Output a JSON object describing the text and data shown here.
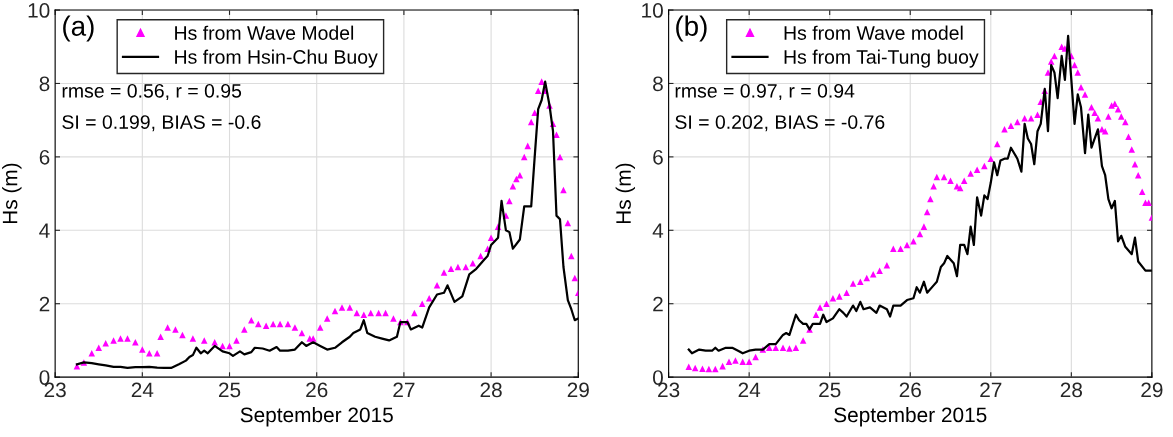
{
  "chart_data": [
    {
      "type": "line",
      "xlabel": "September 2015",
      "ylabel": "Hs (m)",
      "xlim": [
        23,
        29
      ],
      "xticks": [
        23,
        24,
        25,
        26,
        27,
        28,
        29
      ],
      "ylim": [
        0,
        10
      ],
      "yticks": [
        0,
        2,
        4,
        6,
        8,
        10
      ],
      "grid": true,
      "legend": "top left",
      "annotations": [
        "(a)",
        "rmse = 0.56, r = 0.95",
        "SI = 0.199, BIAS = -0.6"
      ],
      "series": [
        {
          "name": "Hs from Wave Model",
          "type": "scatter",
          "marker": "triangle",
          "color": "#ff00ff",
          "x": [
            23.25,
            23.33,
            23.42,
            23.5,
            23.58,
            23.67,
            23.75,
            23.83,
            23.92,
            24.0,
            24.08,
            24.17,
            24.21,
            24.29,
            24.38,
            24.46,
            24.58,
            24.71,
            24.83,
            24.92,
            25.0,
            25.08,
            25.17,
            25.25,
            25.33,
            25.42,
            25.5,
            25.58,
            25.67,
            25.75,
            25.83,
            25.92,
            25.96,
            26.04,
            26.12,
            26.21,
            26.29,
            26.38,
            26.46,
            26.54,
            26.62,
            26.71,
            26.79,
            26.88,
            26.96,
            27.04,
            27.12,
            27.21,
            27.29,
            27.38,
            27.46,
            27.54,
            27.62,
            27.71,
            27.79,
            27.88,
            27.96,
            28.0,
            28.08,
            28.17,
            28.21,
            28.25,
            28.29,
            28.33,
            28.38,
            28.42,
            28.46,
            28.5,
            28.54,
            28.58,
            28.62,
            28.67,
            28.71,
            28.75,
            28.79,
            28.83,
            28.88,
            28.92,
            28.96,
            29.0
          ],
          "values": [
            0.3,
            0.4,
            0.65,
            0.8,
            0.92,
            1.0,
            1.05,
            1.05,
            0.95,
            0.75,
            0.65,
            0.65,
            1.1,
            1.35,
            1.3,
            1.15,
            1.05,
            1.0,
            0.95,
            0.85,
            0.85,
            1.0,
            1.3,
            1.55,
            1.45,
            1.4,
            1.45,
            1.45,
            1.45,
            1.35,
            1.2,
            1.05,
            1.05,
            1.35,
            1.6,
            1.8,
            1.9,
            1.9,
            1.75,
            1.7,
            1.75,
            1.75,
            1.75,
            1.6,
            1.5,
            1.5,
            1.75,
            2.0,
            2.15,
            2.5,
            2.85,
            2.95,
            3.0,
            3.0,
            3.1,
            3.3,
            3.5,
            3.8,
            4.1,
            4.4,
            4.8,
            5.2,
            5.4,
            5.5,
            6.0,
            6.3,
            6.95,
            7.2,
            7.8,
            8.05,
            7.8,
            7.4,
            6.9,
            6.6,
            6.0,
            5.1,
            4.2,
            3.3,
            2.7,
            2.3
          ]
        },
        {
          "name": "Hs from Hsin-Chu Buoy",
          "marker": "none",
          "line_style": "solid",
          "color": "#000000",
          "x": [
            23.25,
            23.33,
            23.42,
            23.5,
            23.58,
            23.67,
            23.75,
            23.83,
            23.92,
            24.0,
            24.08,
            24.17,
            24.25,
            24.33,
            24.42,
            24.5,
            24.54,
            24.58,
            24.62,
            24.67,
            24.71,
            24.75,
            24.83,
            24.92,
            25.0,
            25.04,
            25.12,
            25.17,
            25.25,
            25.29,
            25.38,
            25.46,
            25.54,
            25.58,
            25.67,
            25.75,
            25.83,
            25.88,
            25.92,
            25.96,
            26.04,
            26.12,
            26.21,
            26.29,
            26.38,
            26.42,
            26.5,
            26.54,
            26.58,
            26.67,
            26.75,
            26.83,
            26.92,
            26.96,
            27.04,
            27.08,
            27.17,
            27.21,
            27.29,
            27.38,
            27.46,
            27.5,
            27.58,
            27.67,
            27.75,
            27.83,
            27.92,
            27.96,
            28.0,
            28.08,
            28.12,
            28.17,
            28.21,
            28.25,
            28.33,
            28.38,
            28.46,
            28.5,
            28.54,
            28.58,
            28.62,
            28.67,
            28.71,
            28.75,
            28.79,
            28.83,
            28.88,
            28.92,
            28.96,
            29.0
          ],
          "values": [
            0.35,
            0.4,
            0.38,
            0.35,
            0.32,
            0.28,
            0.28,
            0.25,
            0.27,
            0.27,
            0.28,
            0.26,
            0.25,
            0.25,
            0.35,
            0.45,
            0.55,
            0.6,
            0.8,
            0.65,
            0.72,
            0.65,
            0.85,
            0.7,
            0.65,
            0.58,
            0.7,
            0.62,
            0.68,
            0.8,
            0.78,
            0.72,
            0.82,
            0.72,
            0.72,
            0.75,
            0.95,
            0.85,
            0.9,
            0.95,
            0.85,
            0.75,
            0.8,
            0.95,
            1.1,
            1.2,
            1.3,
            1.55,
            1.2,
            1.1,
            1.05,
            1.0,
            1.1,
            1.5,
            1.5,
            1.3,
            1.4,
            1.35,
            1.9,
            2.25,
            2.3,
            2.5,
            2.05,
            2.2,
            2.8,
            2.95,
            3.2,
            3.3,
            3.6,
            3.8,
            4.8,
            4.0,
            3.95,
            3.5,
            3.75,
            4.65,
            4.65,
            6.0,
            7.3,
            7.55,
            8.05,
            7.4,
            6.7,
            4.4,
            4.3,
            3.0,
            2.1,
            1.85,
            1.55,
            1.6
          ]
        }
      ]
    },
    {
      "type": "line",
      "xlabel": "September 2015",
      "ylabel": "Hs (m)",
      "xlim": [
        23,
        29
      ],
      "xticks": [
        23,
        24,
        25,
        26,
        27,
        28,
        29
      ],
      "ylim": [
        0,
        10
      ],
      "yticks": [
        0,
        2,
        4,
        6,
        8,
        10
      ],
      "grid": true,
      "legend": "top left",
      "annotations": [
        "(b)",
        "rmse = 0.97, r = 0.94",
        "SI = 0.202, BIAS = -0.76"
      ],
      "series": [
        {
          "name": "Hs from Wave model",
          "type": "scatter",
          "marker": "triangle",
          "color": "#ff00ff",
          "x": [
            23.25,
            23.33,
            23.42,
            23.5,
            23.58,
            23.67,
            23.75,
            23.83,
            23.92,
            24.0,
            24.08,
            24.17,
            24.25,
            24.33,
            24.42,
            24.5,
            24.58,
            24.67,
            24.75,
            24.83,
            24.88,
            24.96,
            25.04,
            25.12,
            25.21,
            25.29,
            25.38,
            25.46,
            25.54,
            25.62,
            25.71,
            25.79,
            25.88,
            25.96,
            26.04,
            26.12,
            26.17,
            26.21,
            26.25,
            26.29,
            26.33,
            26.42,
            26.5,
            26.58,
            26.62,
            26.67,
            26.75,
            26.83,
            26.92,
            27.0,
            27.08,
            27.17,
            27.25,
            27.33,
            27.42,
            27.5,
            27.58,
            27.62,
            27.67,
            27.71,
            27.75,
            27.79,
            27.88,
            27.92,
            28.0,
            28.04,
            28.08,
            28.12,
            28.17,
            28.25,
            28.29,
            28.33,
            28.38,
            28.42,
            28.46,
            28.5,
            28.54,
            28.58,
            28.62,
            28.67,
            28.71,
            28.75,
            28.79,
            28.83,
            28.88,
            28.92,
            28.96,
            29.0
          ],
          "values": [
            0.28,
            0.25,
            0.23,
            0.22,
            0.22,
            0.3,
            0.42,
            0.45,
            0.42,
            0.42,
            0.55,
            0.75,
            0.8,
            0.8,
            0.8,
            0.78,
            0.8,
            1.0,
            1.3,
            1.7,
            1.9,
            2.0,
            2.15,
            2.2,
            2.3,
            2.55,
            2.6,
            2.7,
            2.8,
            2.9,
            3.05,
            3.5,
            3.5,
            3.6,
            3.7,
            3.9,
            4.1,
            4.5,
            4.85,
            5.2,
            5.45,
            5.45,
            5.35,
            5.2,
            5.15,
            5.35,
            5.55,
            5.65,
            5.75,
            5.95,
            6.35,
            6.75,
            6.85,
            6.95,
            7.05,
            7.05,
            7.15,
            7.5,
            7.8,
            8.3,
            8.6,
            8.75,
            9.0,
            8.95,
            8.75,
            8.5,
            8.3,
            7.9,
            7.7,
            7.35,
            7.2,
            7.05,
            6.75,
            6.7,
            7.1,
            7.4,
            7.45,
            7.3,
            7.1,
            6.95,
            6.55,
            6.2,
            5.8,
            5.5,
            5.05,
            4.75,
            4.75,
            4.35
          ]
        },
        {
          "name": "Hs from Tai-Tung buoy",
          "marker": "none",
          "line_style": "solid",
          "color": "#000000",
          "x": [
            23.25,
            23.29,
            23.38,
            23.46,
            23.54,
            23.58,
            23.62,
            23.71,
            23.79,
            23.88,
            23.92,
            24.0,
            24.08,
            24.17,
            24.25,
            24.33,
            24.42,
            24.46,
            24.5,
            24.58,
            24.62,
            24.67,
            24.71,
            24.75,
            24.79,
            24.88,
            24.92,
            24.96,
            25.04,
            25.12,
            25.17,
            25.21,
            25.29,
            25.33,
            25.38,
            25.42,
            25.5,
            25.58,
            25.62,
            25.71,
            25.75,
            25.79,
            25.88,
            25.96,
            26.04,
            26.08,
            26.12,
            26.17,
            26.21,
            26.29,
            26.33,
            26.38,
            26.42,
            26.46,
            26.54,
            26.58,
            26.62,
            26.67,
            26.71,
            26.75,
            26.79,
            26.83,
            26.88,
            26.92,
            26.96,
            27.0,
            27.04,
            27.08,
            27.12,
            27.17,
            27.21,
            27.25,
            27.29,
            27.33,
            27.38,
            27.42,
            27.46,
            27.5,
            27.54,
            27.58,
            27.62,
            27.67,
            27.71,
            27.75,
            27.79,
            27.83,
            27.88,
            27.92,
            27.96,
            28.0,
            28.04,
            28.08,
            28.12,
            28.17,
            28.21,
            28.25,
            28.33,
            28.38,
            28.42,
            28.46,
            28.5,
            28.54,
            28.58,
            28.62,
            28.67,
            28.75,
            28.79,
            28.83,
            28.92,
            29.0
          ],
          "values": [
            0.75,
            0.65,
            0.75,
            0.72,
            0.72,
            0.8,
            0.72,
            0.8,
            0.8,
            0.7,
            0.65,
            0.72,
            0.75,
            0.75,
            0.9,
            0.9,
            1.15,
            1.2,
            1.15,
            1.7,
            1.55,
            1.45,
            1.45,
            1.3,
            1.45,
            1.45,
            1.7,
            1.5,
            1.6,
            1.85,
            1.75,
            1.65,
            1.95,
            1.8,
            2.05,
            1.85,
            1.9,
            1.75,
            1.95,
            1.85,
            1.65,
            1.95,
            1.95,
            2.1,
            2.15,
            2.45,
            2.3,
            2.6,
            2.3,
            2.5,
            2.6,
            3.0,
            3.1,
            3.3,
            3.1,
            2.75,
            3.6,
            3.6,
            3.35,
            4.1,
            3.6,
            4.9,
            4.4,
            4.95,
            4.85,
            5.3,
            5.85,
            5.5,
            5.9,
            5.95,
            5.95,
            6.25,
            6.1,
            5.95,
            5.6,
            6.9,
            6.5,
            6.35,
            5.8,
            6.7,
            6.9,
            7.85,
            6.7,
            8.5,
            8.3,
            7.6,
            8.75,
            8.1,
            9.3,
            8.1,
            6.9,
            7.7,
            7.35,
            6.1,
            7.15,
            6.25,
            6.75,
            5.75,
            5.5,
            4.85,
            4.6,
            4.8,
            3.7,
            3.85,
            3.55,
            3.35,
            3.8,
            3.15,
            2.9,
            2.9
          ]
        }
      ]
    }
  ]
}
